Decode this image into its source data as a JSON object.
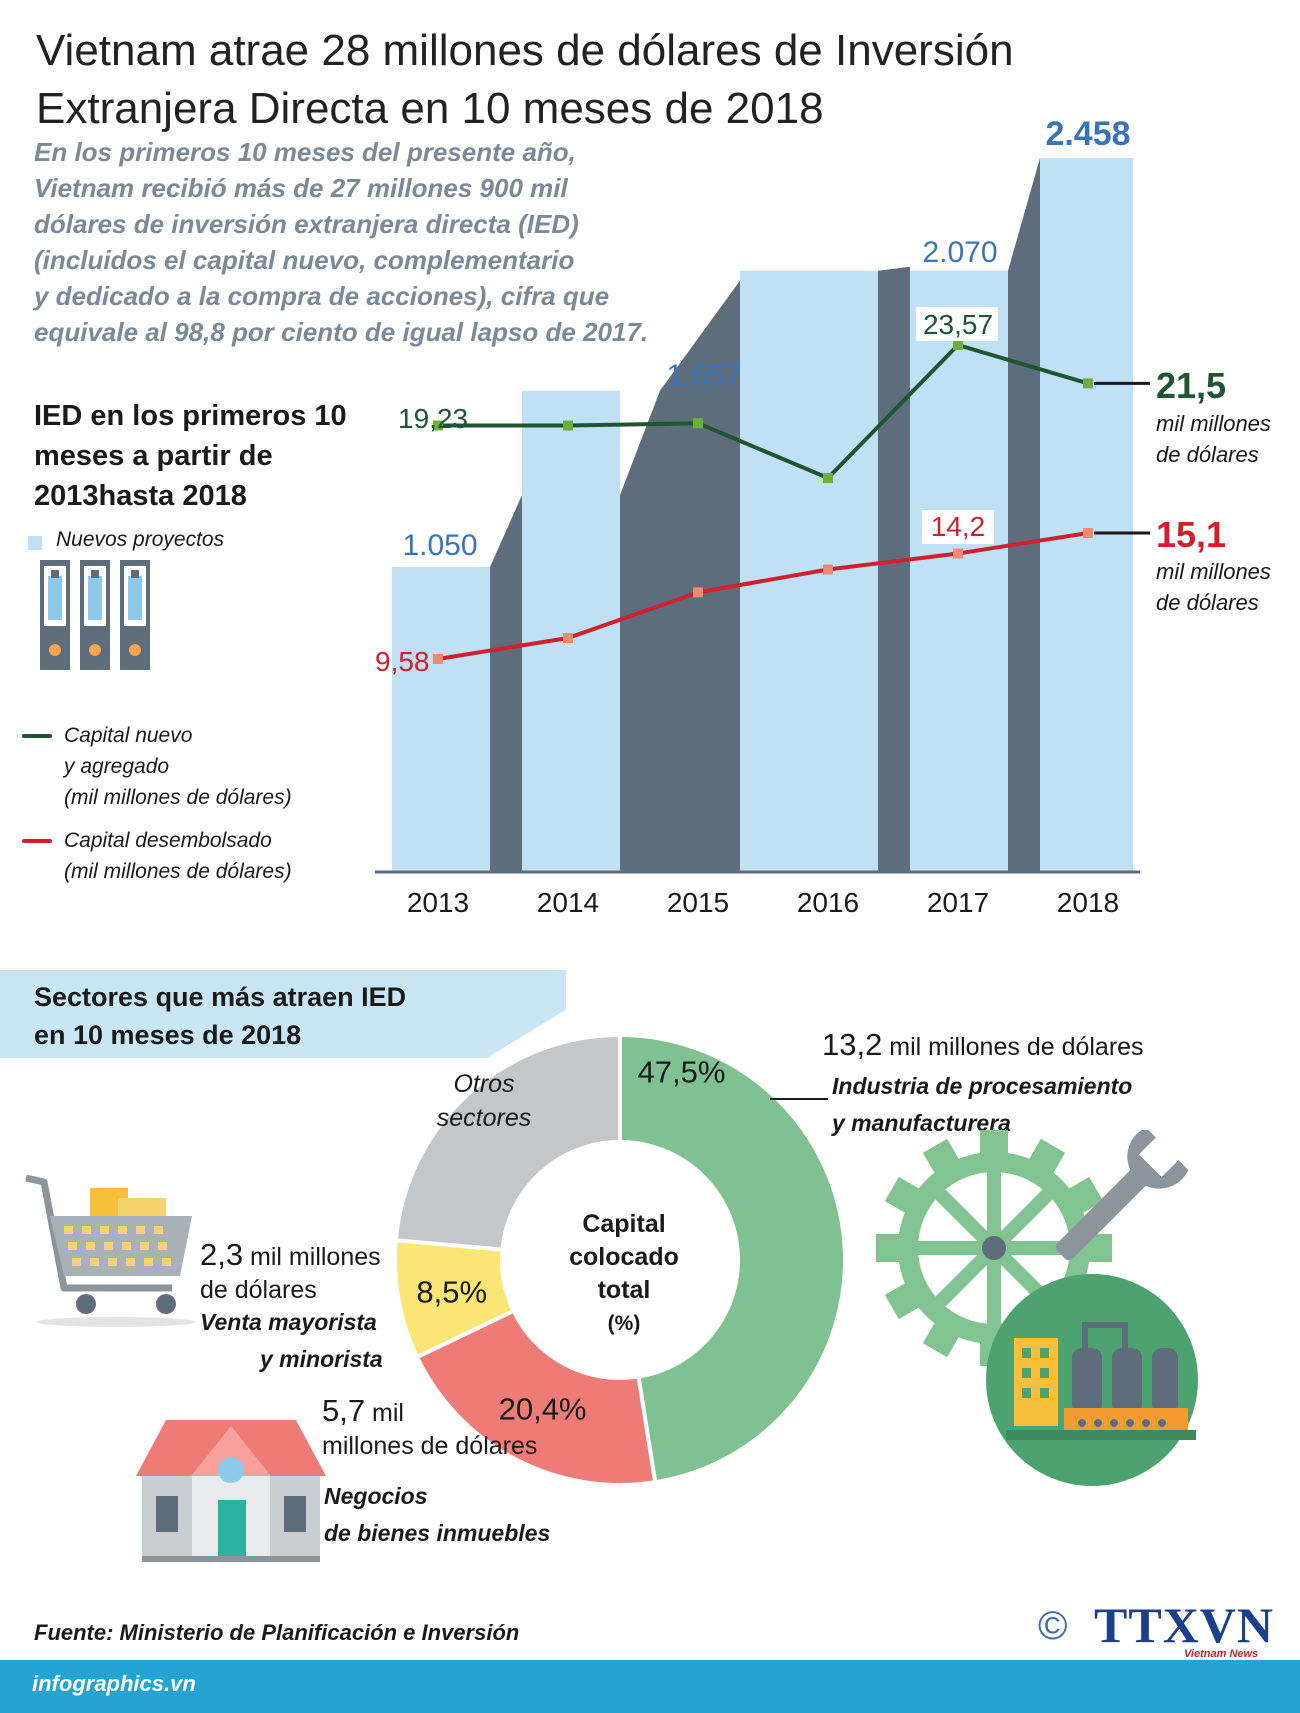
{
  "header": {
    "title_line1": "Vietnam atrae 28 millones de dólares de Inversión",
    "title_line2": "Extranjera Directa en 10 meses de 2018"
  },
  "intro": [
    "En los primeros 10 meses del presente año,",
    "Vietnam recibió más de 27 millones 900 mil",
    "dólares de inversión extranjera directa (IED)",
    "(incluidos el capital nuevo, complementario",
    "y dedicado a la compra de acciones), cifra que",
    "equivale al 98,8 por ciento de igual lapso de 2017."
  ],
  "chart_heading": [
    "IED en los primeros 10",
    "meses a partir de",
    "2013hasta 2018"
  ],
  "legend": {
    "projects": "Nuevos proyectos",
    "new_capital": [
      "Capital nuevo",
      "y agregado",
      "(mil millones de dólares)"
    ],
    "disbursed": [
      "Capital desembolsado",
      "(mil millones de dólares)"
    ]
  },
  "colors": {
    "bar_light": "#bfe0f5",
    "bar_dark": "#5d6d7c",
    "new_capital_line": "#1f5530",
    "new_capital_marker": "#6fad3f",
    "disbursed_line": "#d0202e",
    "disbursed_marker": "#f08a70",
    "bar_label": "#3a74b8",
    "donut_manufacturing": "#7fc191",
    "donut_realestate": "#ee7b76",
    "donut_retail": "#fbe574",
    "donut_other": "#c4c6c8"
  },
  "chart_data": [
    {
      "type": "bar",
      "title": "IED en los primeros 10 meses a partir de 2013hasta 2018",
      "categories": [
        "2013",
        "2014",
        "2015",
        "2016",
        "2017",
        "2018"
      ],
      "series": [
        {
          "name": "Nuevos proyectos",
          "values": [
            1050,
            null,
            1657,
            null,
            2070,
            2458
          ],
          "labels": [
            "1.050",
            "",
            "1.657",
            "",
            "2.070",
            "2.458"
          ]
        },
        {
          "name": "Capital nuevo y agregado (mil millones de dólares)",
          "type": "line",
          "values": [
            19.23,
            19.23,
            19.35,
            16.4,
            23.57,
            21.5
          ],
          "labels": [
            "19,23",
            "",
            "",
            "",
            "23,57",
            ""
          ]
        },
        {
          "name": "Capital desembolsado (mil millones de dólares)",
          "type": "line",
          "values": [
            9.58,
            10.5,
            12.5,
            13.5,
            14.2,
            15.1
          ],
          "labels": [
            "9,58",
            "",
            "",
            "",
            "14,2",
            ""
          ]
        }
      ],
      "end_labels": {
        "new_capital_value": "21,5",
        "disbursed_value": "15,1",
        "unit_line1": "mil millones",
        "unit_line2": "de dólares"
      },
      "ylim_bars": [
        0,
        2700
      ]
    },
    {
      "type": "pie",
      "title": "Sectores que más atraen IED en 10 meses de 2018",
      "center_label": [
        "Capital",
        "colocado",
        "total",
        "(%)"
      ],
      "slices": [
        {
          "name": "Industria de procesamiento y manufacturera",
          "value": 47.5,
          "label": "47,5%"
        },
        {
          "name": "Negocios de bienes inmuebles",
          "value": 20.4,
          "label": "20,4%"
        },
        {
          "name": "Venta mayorista y minorista",
          "value": 8.5,
          "label": "8,5%"
        },
        {
          "name": "Otros sectores",
          "value": 23.6,
          "label": ""
        }
      ],
      "other_label": [
        "Otros",
        "sectores"
      ]
    }
  ],
  "sectors": {
    "heading": [
      "Sectores que más atraen IED",
      "en 10 meses de 2018"
    ],
    "manufacturing": {
      "amount": "13,2",
      "unit": " mil millones de dólares",
      "name1": "Industria de procesamiento",
      "name2": "y manufacturera"
    },
    "retail": {
      "amount": "2,3",
      "unit1": " mil millones",
      "unit2": "de dólares",
      "name1": "Venta mayorista",
      "name2": "y minorista"
    },
    "realestate": {
      "amount": "5,7",
      "unit1": " mil",
      "unit2": "millones de dólares",
      "name1": "Negocios",
      "name2": "de bienes inmuebles"
    }
  },
  "footer": {
    "source": "Fuente: Ministerio de Planificación e Inversión",
    "site": "infographics.vn",
    "copyright": "©",
    "logo": "TTXVN",
    "logo_sub": "Vietnam News Agency"
  }
}
